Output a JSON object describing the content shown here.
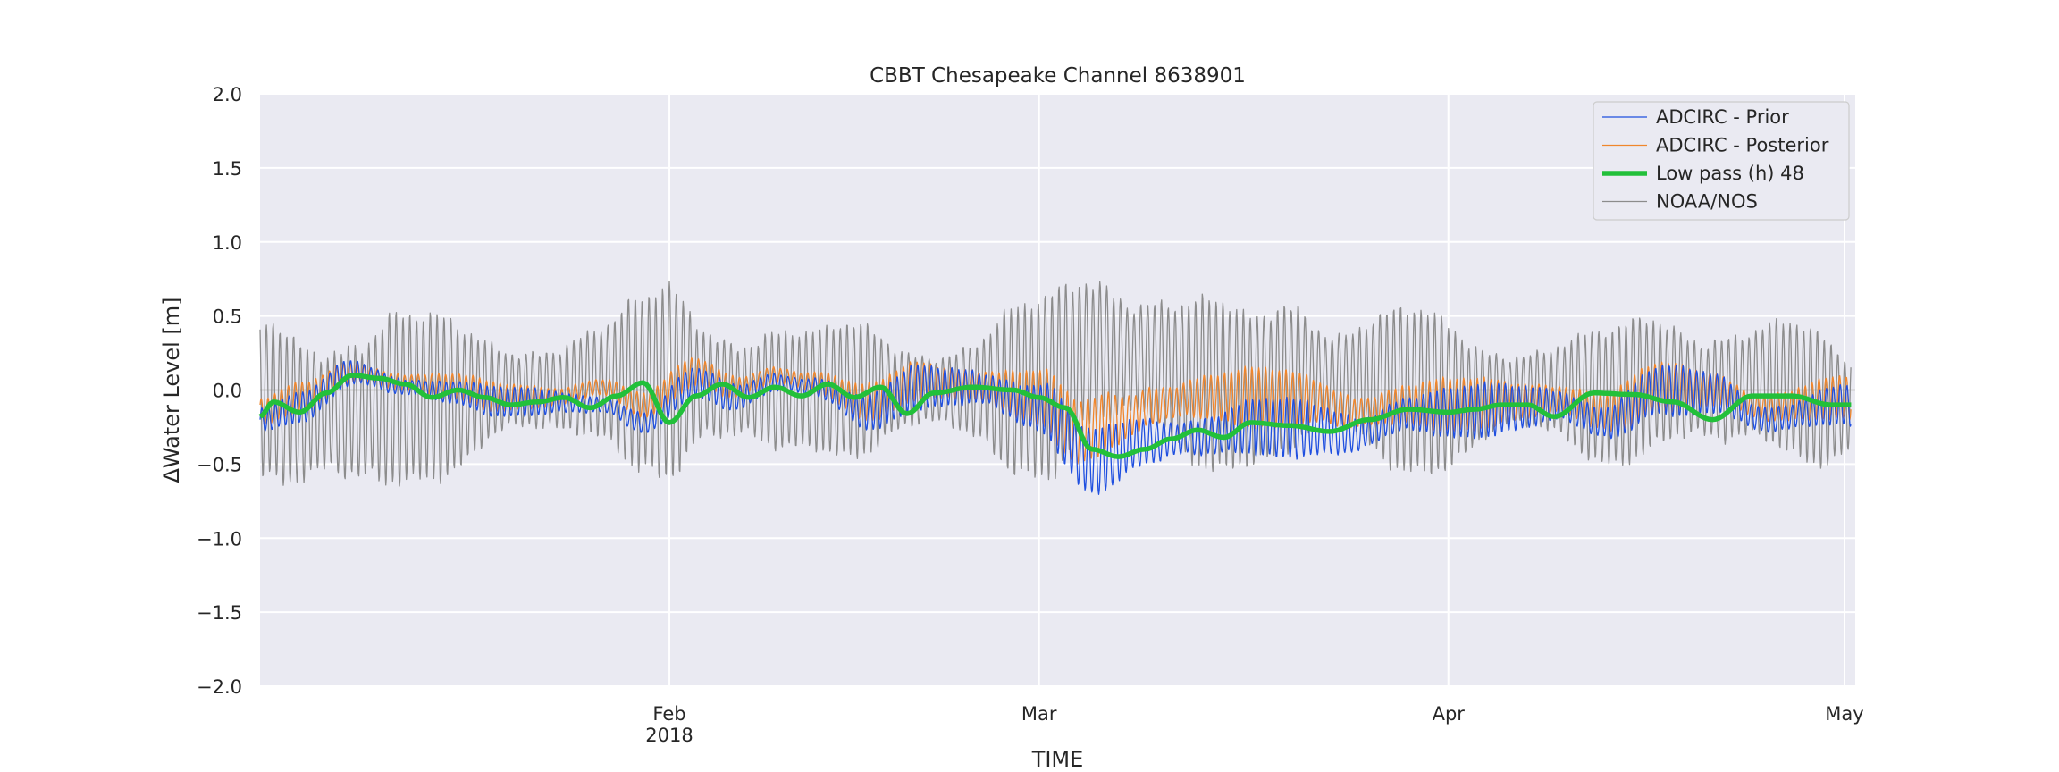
{
  "chart_data": {
    "type": "line",
    "title": "CBBT Chesapeake Channel  8638901",
    "xlabel": "TIME",
    "ylabel": "ΔWater Level [m]",
    "xlim": [
      "2018-01-01",
      "2018-05-01"
    ],
    "ylim": [
      -2.0,
      2.0
    ],
    "yticks": [
      2.0,
      1.5,
      1.0,
      0.5,
      0.0,
      -0.5,
      -1.0,
      -1.5,
      -2.0
    ],
    "ytick_labels": [
      "2.0",
      "1.5",
      "1.0",
      "0.5",
      "0.0",
      "−0.5",
      "−1.0",
      "−1.5",
      "−2.0"
    ],
    "xticks": [
      {
        "date": "2018-02-01",
        "label": "Feb",
        "sublabel": "2018"
      },
      {
        "date": "2018-03-01",
        "label": "Mar",
        "sublabel": ""
      },
      {
        "date": "2018-04-01",
        "label": "Apr",
        "sublabel": ""
      },
      {
        "date": "2018-05-01",
        "label": "May",
        "sublabel": ""
      }
    ],
    "grid": true,
    "zero_line": true,
    "legend_position": "top-right",
    "background_color": "#eaeaf2",
    "series": [
      {
        "name": "ADCIRC - Prior",
        "color": "#1f4fe0",
        "style": "thin",
        "tidal_amplitude": [
          [
            0,
            0.1
          ],
          [
            40,
            0.1
          ],
          [
            60,
            0.22
          ],
          [
            95,
            0.18
          ],
          [
            120,
            0.15
          ]
        ],
        "x": [
          "2018-01-01",
          "2018-01-04",
          "2018-01-08",
          "2018-01-12",
          "2018-01-16",
          "2018-01-19",
          "2018-01-23",
          "2018-01-27",
          "2018-01-30",
          "2018-02-03",
          "2018-02-06",
          "2018-02-09",
          "2018-02-12",
          "2018-02-16",
          "2018-02-20",
          "2018-02-24",
          "2018-03-01",
          "2018-03-05",
          "2018-03-09",
          "2018-03-13",
          "2018-03-17",
          "2018-03-21",
          "2018-03-25",
          "2018-03-29",
          "2018-04-02",
          "2018-04-06",
          "2018-04-09",
          "2018-04-13",
          "2018-04-17",
          "2018-04-21",
          "2018-04-25",
          "2018-05-01"
        ],
        "y": [
          -0.2,
          -0.12,
          0.12,
          0.02,
          -0.02,
          -0.08,
          -0.08,
          -0.1,
          -0.22,
          0.05,
          -0.05,
          0.05,
          0.02,
          -0.15,
          0.02,
          0.02,
          -0.12,
          -0.48,
          -0.35,
          -0.32,
          -0.25,
          -0.26,
          -0.3,
          -0.16,
          -0.15,
          -0.12,
          -0.1,
          -0.22,
          0.0,
          -0.02,
          -0.2,
          -0.1
        ]
      },
      {
        "name": "ADCIRC - Posterior",
        "color": "#f0862c",
        "style": "thin",
        "tidal_amplitude": [
          [
            0,
            0.1
          ],
          [
            40,
            0.1
          ],
          [
            60,
            0.22
          ],
          [
            95,
            0.18
          ],
          [
            120,
            0.15
          ]
        ],
        "x": [
          "2018-01-01",
          "2018-01-04",
          "2018-01-08",
          "2018-01-12",
          "2018-01-16",
          "2018-01-19",
          "2018-01-23",
          "2018-01-27",
          "2018-01-30",
          "2018-02-03",
          "2018-02-06",
          "2018-02-09",
          "2018-02-12",
          "2018-02-16",
          "2018-02-20",
          "2018-02-24",
          "2018-03-01",
          "2018-03-04",
          "2018-03-07",
          "2018-03-10",
          "2018-03-13",
          "2018-03-17",
          "2018-03-21",
          "2018-03-25",
          "2018-03-29",
          "2018-04-02",
          "2018-04-06",
          "2018-04-09",
          "2018-04-13",
          "2018-04-17",
          "2018-04-21",
          "2018-04-25",
          "2018-05-01"
        ],
        "y": [
          -0.15,
          -0.05,
          0.12,
          0.05,
          0.02,
          -0.05,
          -0.05,
          0.02,
          -0.1,
          0.12,
          0.02,
          0.1,
          0.05,
          -0.08,
          0.06,
          0.03,
          -0.05,
          -0.28,
          -0.2,
          -0.1,
          -0.05,
          -0.05,
          -0.06,
          -0.15,
          -0.1,
          -0.1,
          -0.08,
          -0.06,
          -0.15,
          0.02,
          0.0,
          -0.12,
          -0.05
        ]
      },
      {
        "name": "Low pass (h) 48",
        "color": "#22c03a",
        "style": "thick",
        "tidal_amplitude": [
          [
            0,
            0
          ]
        ],
        "x": [
          "2018-01-01",
          "2018-01-02",
          "2018-01-04",
          "2018-01-06",
          "2018-01-08",
          "2018-01-10",
          "2018-01-12",
          "2018-01-14",
          "2018-01-16",
          "2018-01-18",
          "2018-01-20",
          "2018-01-22",
          "2018-01-24",
          "2018-01-26",
          "2018-01-28",
          "2018-01-30",
          "2018-02-01",
          "2018-02-03",
          "2018-02-05",
          "2018-02-07",
          "2018-02-09",
          "2018-02-11",
          "2018-02-13",
          "2018-02-15",
          "2018-02-17",
          "2018-02-19",
          "2018-02-21",
          "2018-02-24",
          "2018-02-27",
          "2018-03-01",
          "2018-03-03",
          "2018-03-05",
          "2018-03-07",
          "2018-03-09",
          "2018-03-11",
          "2018-03-13",
          "2018-03-15",
          "2018-03-17",
          "2018-03-20",
          "2018-03-23",
          "2018-03-26",
          "2018-03-29",
          "2018-04-01",
          "2018-04-03",
          "2018-04-05",
          "2018-04-07",
          "2018-04-09",
          "2018-04-12",
          "2018-04-15",
          "2018-04-18",
          "2018-04-21",
          "2018-04-24",
          "2018-04-27",
          "2018-04-30"
        ],
        "y": [
          -0.18,
          -0.08,
          -0.15,
          -0.02,
          0.1,
          0.08,
          0.04,
          -0.05,
          0.0,
          -0.05,
          -0.1,
          -0.08,
          -0.05,
          -0.12,
          -0.04,
          0.05,
          -0.22,
          -0.04,
          0.04,
          -0.05,
          0.02,
          -0.04,
          0.04,
          -0.05,
          0.02,
          -0.16,
          -0.02,
          0.02,
          0.0,
          -0.05,
          -0.12,
          -0.4,
          -0.45,
          -0.4,
          -0.33,
          -0.27,
          -0.32,
          -0.22,
          -0.24,
          -0.28,
          -0.2,
          -0.13,
          -0.15,
          -0.13,
          -0.1,
          -0.1,
          -0.18,
          -0.02,
          -0.03,
          -0.08,
          -0.2,
          -0.04,
          -0.04,
          -0.1
        ]
      },
      {
        "name": "NOAA/NOS",
        "color": "#8c8c8c",
        "style": "thin",
        "tidal_amplitude": [
          [
            0,
            0.55
          ],
          [
            2,
            0.62
          ],
          [
            5,
            0.72
          ],
          [
            7,
            0.82
          ],
          [
            9,
            0.75
          ],
          [
            13,
            0.55
          ],
          [
            18,
            0.42
          ],
          [
            22,
            0.48
          ],
          [
            26,
            0.42
          ],
          [
            29,
            0.58
          ],
          [
            31,
            0.75
          ],
          [
            34,
            0.6
          ],
          [
            38,
            0.55
          ],
          [
            42,
            0.4
          ],
          [
            46,
            0.5
          ],
          [
            50,
            0.42
          ],
          [
            54,
            0.4
          ],
          [
            57,
            0.55
          ],
          [
            61,
            0.7
          ],
          [
            64,
            0.8
          ],
          [
            68,
            0.6
          ],
          [
            71,
            0.58
          ],
          [
            75,
            0.55
          ],
          [
            78,
            0.8
          ],
          [
            82,
            0.5
          ],
          [
            86,
            0.55
          ],
          [
            90,
            0.55
          ],
          [
            94,
            0.45
          ],
          [
            98,
            0.4
          ],
          [
            102,
            0.45
          ],
          [
            106,
            0.55
          ],
          [
            110,
            0.62
          ],
          [
            114,
            0.45
          ],
          [
            118,
            0.45
          ],
          [
            120,
            0.4
          ]
        ],
        "x": [
          "2018-01-01",
          "2018-01-04",
          "2018-01-08",
          "2018-01-12",
          "2018-01-16",
          "2018-01-19",
          "2018-01-23",
          "2018-01-27",
          "2018-01-30",
          "2018-02-03",
          "2018-02-06",
          "2018-02-09",
          "2018-02-12",
          "2018-02-16",
          "2018-02-20",
          "2018-02-24",
          "2018-03-01",
          "2018-03-05",
          "2018-03-09",
          "2018-03-13",
          "2018-03-17",
          "2018-03-21",
          "2018-03-25",
          "2018-03-29",
          "2018-04-02",
          "2018-04-06",
          "2018-04-09",
          "2018-04-13",
          "2018-04-17",
          "2018-04-21",
          "2018-04-25",
          "2018-05-01"
        ],
        "y": [
          -0.05,
          -0.15,
          -0.15,
          -0.05,
          -0.05,
          0.0,
          0.0,
          0.05,
          0.05,
          0.05,
          0.0,
          0.0,
          0.0,
          0.0,
          0.0,
          0.0,
          0.0,
          0.25,
          0.2,
          0.05,
          0.0,
          0.1,
          0.05,
          0.0,
          -0.05,
          0.0,
          0.0,
          -0.05,
          0.05,
          0.0,
          0.05,
          -0.1
        ]
      }
    ]
  }
}
